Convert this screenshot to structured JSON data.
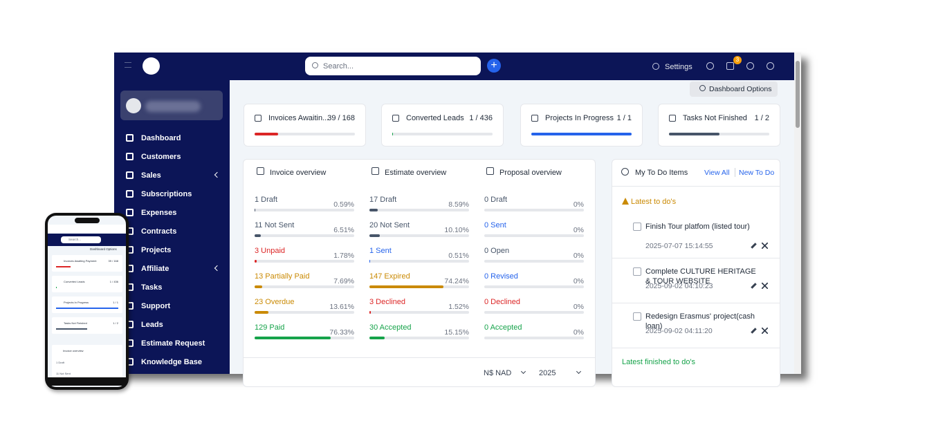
{
  "navbar": {
    "search_placeholder": "Search...",
    "settings": "Settings",
    "badge": "3"
  },
  "sidebar": {
    "items": [
      "Dashboard",
      "Customers",
      "Sales",
      "Subscriptions",
      "Expenses",
      "Contracts",
      "Projects",
      "Affiliate",
      "Tasks",
      "Support",
      "Leads",
      "Estimate Request",
      "Knowledge Base"
    ],
    "expandable": [
      "Sales",
      "Affiliate"
    ]
  },
  "dashboard_options": "Dashboard Options",
  "stat_cards": [
    {
      "label": "Invoices Awaitin...",
      "count": "39 / 168",
      "color": "#dc2626"
    },
    {
      "label": "Converted Leads",
      "count": "1 / 436",
      "color": "#16a34a"
    },
    {
      "label": "Projects In Progress",
      "count": "1 / 1",
      "color": "#2563eb"
    },
    {
      "label": "Tasks Not Finished",
      "count": "1 / 2",
      "color": "#475569"
    }
  ],
  "overview": [
    {
      "title": "Invoice overview",
      "rows": [
        {
          "label": "1 Draft",
          "percent": "0.59%",
          "color": "#475569"
        },
        {
          "label": "11 Not Sent",
          "percent": "6.51%",
          "color": "#475569"
        },
        {
          "label": "3 Unpaid",
          "percent": "1.78%",
          "color": "#dc2626"
        },
        {
          "label": "13 Partially Paid",
          "percent": "7.69%",
          "color": "#ca8a04"
        },
        {
          "label": "23 Overdue",
          "percent": "13.61%",
          "color": "#ca8a04"
        },
        {
          "label": "129 Paid",
          "percent": "76.33%",
          "color": "#16a34a"
        }
      ]
    },
    {
      "title": "Estimate overview",
      "rows": [
        {
          "label": "17 Draft",
          "percent": "8.59%",
          "color": "#475569"
        },
        {
          "label": "20 Not Sent",
          "percent": "10.10%",
          "color": "#475569"
        },
        {
          "label": "1 Sent",
          "percent": "0.51%",
          "color": "#2563eb"
        },
        {
          "label": "147 Expired",
          "percent": "74.24%",
          "color": "#ca8a04"
        },
        {
          "label": "3 Declined",
          "percent": "1.52%",
          "color": "#dc2626"
        },
        {
          "label": "30 Accepted",
          "percent": "15.15%",
          "color": "#16a34a"
        }
      ]
    },
    {
      "title": "Proposal overview",
      "rows": [
        {
          "label": "0 Draft",
          "percent": "0%",
          "color": "#475569"
        },
        {
          "label": "0 Sent",
          "percent": "0%",
          "color": "#2563eb"
        },
        {
          "label": "0 Open",
          "percent": "0%",
          "color": "#475569"
        },
        {
          "label": "0 Revised",
          "percent": "0%",
          "color": "#2563eb"
        },
        {
          "label": "0 Declined",
          "percent": "0%",
          "color": "#dc2626"
        },
        {
          "label": "0 Accepted",
          "percent": "0%",
          "color": "#16a34a"
        }
      ]
    }
  ],
  "currency": "N$ NAD",
  "year": "2025",
  "todo": {
    "title": "My To Do Items",
    "view_all": "View All",
    "new": "New To Do",
    "latest": "Latest to do's",
    "items": [
      {
        "title": "Finish Tour platfom (listed tour)",
        "date": "2025-07-07 15:14:55"
      },
      {
        "title": "Complete CULTURE HERITAGE & TOUR WEBSITE",
        "date": "2025-09-02 04:10:23"
      },
      {
        "title": "Redesign Erasmus' project(cash loan)",
        "date": "2025-09-02 04:11:20"
      }
    ],
    "finished": "Latest finished to do's"
  },
  "phone": {
    "search": "Search...",
    "options": "Dashboard Options",
    "cards": [
      {
        "label": "Invoices Awaiting Payment",
        "count": "39 / 168"
      },
      {
        "label": "Converted Leads",
        "count": "1 / 436"
      },
      {
        "label": "Projects In Progress",
        "count": "1 / 1"
      },
      {
        "label": "Tasks Not Finished",
        "count": "1 / 2"
      }
    ],
    "panel_title": "Invoice overview",
    "rows": [
      "1 Draft",
      "11 Not Sent"
    ]
  }
}
